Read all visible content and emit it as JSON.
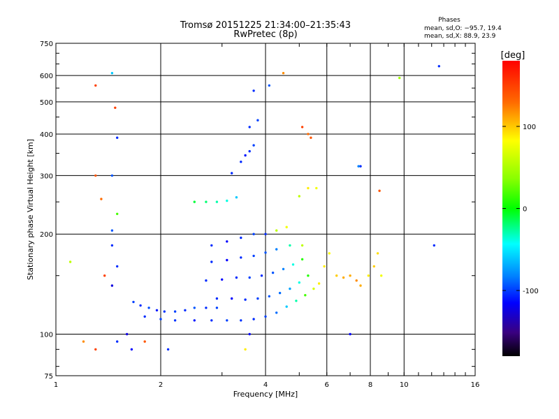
{
  "chart_data": {
    "type": "scatter",
    "title": "Tromsø 20151225 21:34:00–21:35:43",
    "subtitle": "RwPretec (8p)",
    "xlabel": "Frequency [MHz]",
    "ylabel": "Stationary phase Virtual Height [km]",
    "x_scale": "log",
    "y_scale": "log",
    "xlim": [
      1,
      16
    ],
    "ylim": [
      75,
      750
    ],
    "x_ticks": [
      1,
      2,
      4,
      6,
      8,
      10,
      16
    ],
    "y_ticks": [
      75,
      100,
      200,
      300,
      400,
      500,
      600,
      750
    ],
    "grid": true,
    "stats": {
      "heading": "Phases",
      "line1": "mean, sd,O: −95.7, 19.4",
      "line2": "mean, sd,X:  88.9, 23.9"
    },
    "colorbar": {
      "label": "[deg]",
      "range": [
        -180,
        180
      ],
      "ticks": [
        100,
        0,
        -100
      ]
    },
    "series": [
      {
        "points": [
          [
            1.67,
            125,
            -95
          ],
          [
            1.75,
            122,
            -100
          ],
          [
            1.85,
            120,
            -92
          ],
          [
            1.95,
            118,
            -105
          ],
          [
            2.05,
            117,
            -98
          ],
          [
            2.2,
            117,
            -95
          ],
          [
            2.35,
            118,
            -100
          ],
          [
            2.5,
            120,
            -90
          ],
          [
            2.7,
            120,
            -100
          ],
          [
            2.9,
            120,
            -95
          ],
          [
            1.8,
            113,
            -100
          ],
          [
            2.0,
            111,
            -95
          ],
          [
            2.2,
            110,
            -98
          ],
          [
            2.5,
            110,
            -105
          ],
          [
            2.8,
            110,
            -100
          ],
          [
            3.1,
            110,
            -95
          ],
          [
            3.4,
            110,
            -98
          ],
          [
            3.7,
            111,
            -100
          ],
          [
            4.0,
            113,
            -95
          ],
          [
            4.3,
            116,
            -85
          ],
          [
            4.6,
            121,
            -60
          ],
          [
            4.9,
            126,
            -30
          ],
          [
            5.2,
            131,
            20
          ],
          [
            5.5,
            137,
            70
          ],
          [
            5.7,
            142,
            90
          ],
          [
            2.9,
            128,
            -100
          ],
          [
            3.2,
            128,
            -110
          ],
          [
            3.5,
            127,
            -100
          ],
          [
            3.8,
            128,
            -95
          ],
          [
            4.1,
            130,
            -90
          ],
          [
            4.4,
            133,
            -85
          ],
          [
            4.7,
            137,
            -70
          ],
          [
            5.0,
            143,
            -40
          ],
          [
            5.3,
            150,
            10
          ],
          [
            2.7,
            145,
            -100
          ],
          [
            3.0,
            146,
            -110
          ],
          [
            3.3,
            148,
            -100
          ],
          [
            3.6,
            148,
            -95
          ],
          [
            3.9,
            150,
            -100
          ],
          [
            4.2,
            153,
            -90
          ],
          [
            4.5,
            157,
            -80
          ],
          [
            4.8,
            162,
            -40
          ],
          [
            5.1,
            168,
            10
          ],
          [
            2.8,
            165,
            -100
          ],
          [
            3.1,
            167,
            -110
          ],
          [
            3.4,
            170,
            -100
          ],
          [
            3.7,
            172,
            -95
          ],
          [
            4.0,
            176,
            -90
          ],
          [
            4.3,
            180,
            -80
          ],
          [
            4.7,
            185,
            -30
          ],
          [
            5.1,
            185,
            60
          ],
          [
            2.8,
            185,
            -100
          ],
          [
            3.1,
            190,
            -110
          ],
          [
            3.4,
            195,
            -100
          ],
          [
            3.7,
            200,
            -95
          ],
          [
            4.0,
            200,
            -100
          ],
          [
            4.3,
            205,
            60
          ],
          [
            4.6,
            210,
            80
          ],
          [
            2.5,
            250,
            -10
          ],
          [
            2.7,
            250,
            -20
          ],
          [
            2.9,
            250,
            -30
          ],
          [
            3.1,
            252,
            -40
          ],
          [
            3.3,
            258,
            -60
          ],
          [
            3.2,
            305,
            -100
          ],
          [
            3.4,
            330,
            -100
          ],
          [
            3.5,
            345,
            -105
          ],
          [
            3.6,
            355,
            -100
          ],
          [
            3.7,
            370,
            -95
          ],
          [
            3.6,
            420,
            -100
          ],
          [
            3.8,
            440,
            -95
          ],
          [
            3.7,
            540,
            -100
          ],
          [
            4.1,
            560,
            -90
          ],
          [
            4.5,
            610,
            120
          ],
          [
            5.1,
            420,
            150
          ],
          [
            5.3,
            400,
            130
          ],
          [
            5.4,
            390,
            140
          ],
          [
            5.3,
            275,
            90
          ],
          [
            5.6,
            275,
            80
          ],
          [
            5.0,
            260,
            60
          ],
          [
            5.9,
            160,
            90
          ],
          [
            6.1,
            175,
            85
          ],
          [
            6.4,
            150,
            100
          ],
          [
            6.7,
            148,
            110
          ],
          [
            7.0,
            150,
            110
          ],
          [
            7.3,
            145,
            120
          ],
          [
            7.5,
            140,
            110
          ],
          [
            7.9,
            150,
            90
          ],
          [
            8.2,
            160,
            100
          ],
          [
            8.4,
            175,
            95
          ],
          [
            8.6,
            150,
            80
          ],
          [
            1.45,
            610,
            -60
          ],
          [
            1.3,
            560,
            150
          ],
          [
            1.48,
            480,
            150
          ],
          [
            1.5,
            390,
            -100
          ],
          [
            1.3,
            300,
            140
          ],
          [
            1.45,
            300,
            -90
          ],
          [
            1.35,
            255,
            130
          ],
          [
            1.5,
            230,
            20
          ],
          [
            1.45,
            205,
            -90
          ],
          [
            1.45,
            185,
            -100
          ],
          [
            1.5,
            160,
            -100
          ],
          [
            1.38,
            150,
            150
          ],
          [
            1.45,
            140,
            -120
          ],
          [
            1.1,
            165,
            60
          ],
          [
            1.2,
            95,
            120
          ],
          [
            1.5,
            95,
            -100
          ],
          [
            1.6,
            100,
            -120
          ],
          [
            1.65,
            90,
            -110
          ],
          [
            2.1,
            90,
            -100
          ],
          [
            1.3,
            90,
            150
          ],
          [
            1.8,
            95,
            140
          ],
          [
            12.6,
            640,
            -100
          ],
          [
            9.7,
            590,
            50
          ],
          [
            8.5,
            270,
            140
          ],
          [
            7.5,
            320,
            -100
          ],
          [
            7.4,
            320,
            -80
          ],
          [
            7.0,
            100,
            -110
          ],
          [
            3.5,
            90,
            90
          ],
          [
            3.6,
            100,
            -110
          ],
          [
            12.2,
            185,
            -100
          ]
        ]
      }
    ]
  }
}
